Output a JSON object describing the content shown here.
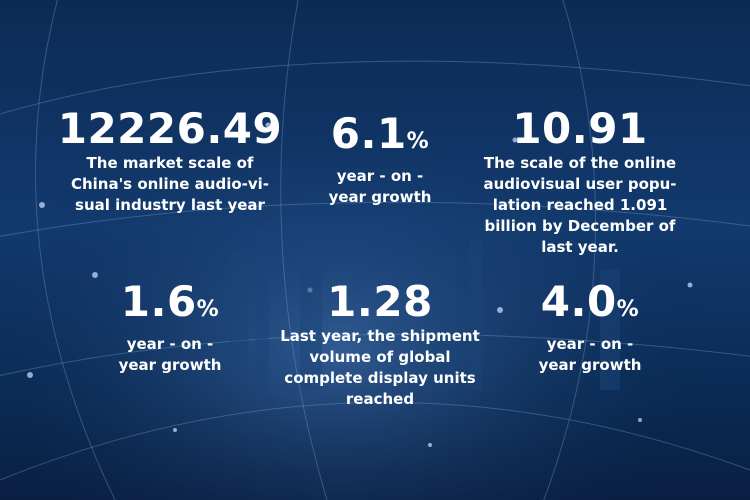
{
  "stats": [
    {
      "value": "12226.49",
      "lines": [
        "The market scale of",
        "China's online audio-vi-",
        "sual industry last year"
      ]
    },
    {
      "value": "6.1",
      "unit": "%",
      "lines": [
        "year - on -",
        "year growth"
      ]
    },
    {
      "value": "10.91",
      "lines": [
        "The scale of the online",
        "audiovisual user popu-",
        "lation reached 1.091",
        "billion by December of",
        "last year."
      ]
    },
    {
      "value": "1.6",
      "unit": "%",
      "lines": [
        "year - on -",
        "year growth"
      ]
    },
    {
      "value": "1.28",
      "lines": [
        "Last year, the shipment",
        "volume of global",
        "complete display units",
        "reached"
      ]
    },
    {
      "value": "4.0",
      "unit": "%",
      "lines": [
        "year - on -",
        "year growth"
      ]
    }
  ]
}
